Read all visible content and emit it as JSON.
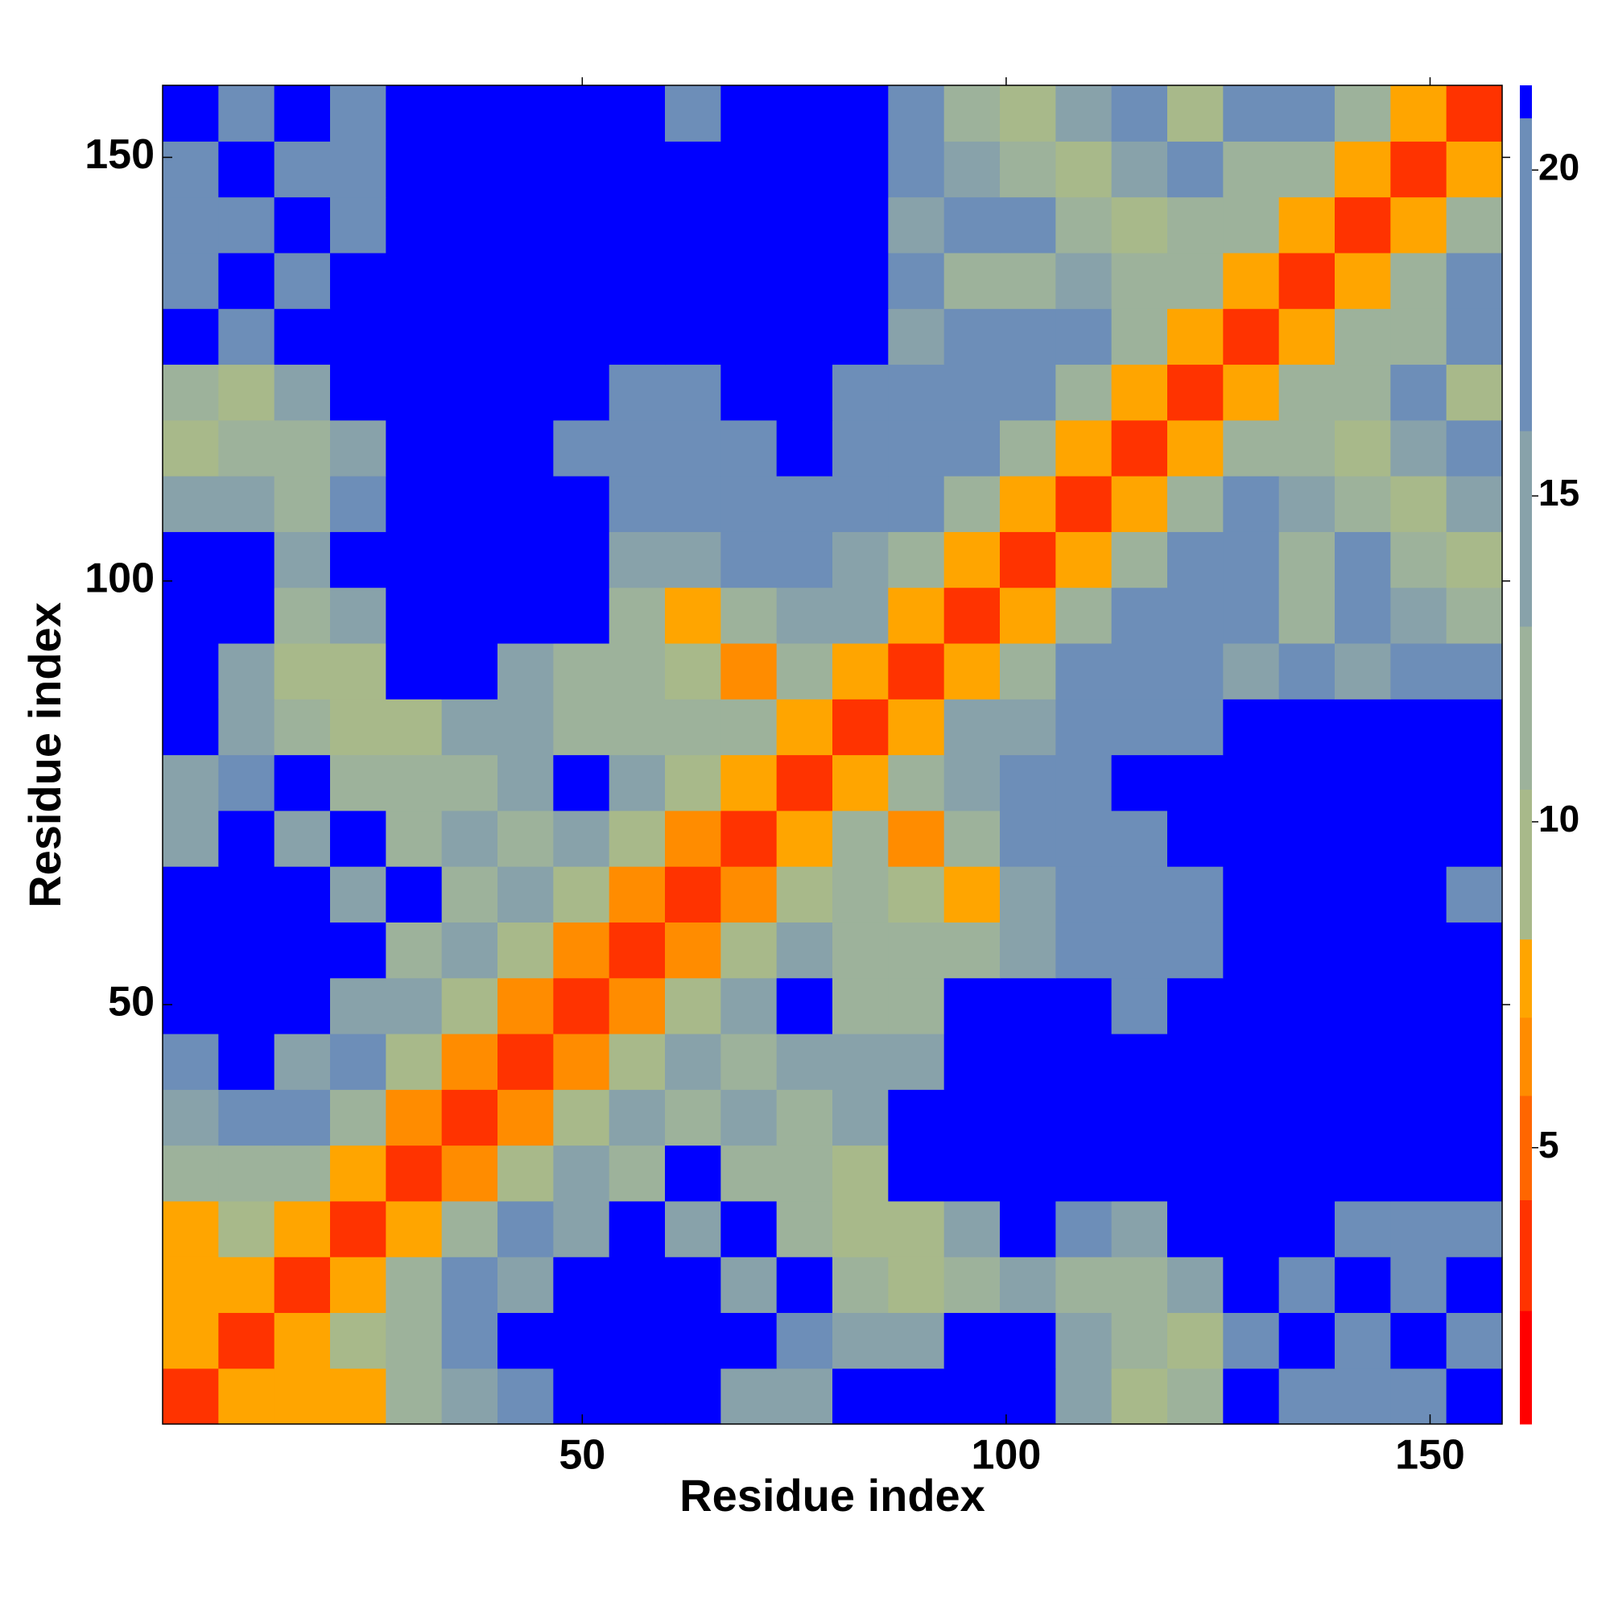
{
  "chart_data": {
    "type": "heatmap",
    "x_label": "Residue index",
    "y_label": "Residue index",
    "xlim": [
      0.5,
      158.5
    ],
    "ylim": [
      0.5,
      158.5
    ],
    "xticks": [
      50,
      100,
      150
    ],
    "yticks": [
      50,
      100,
      150
    ],
    "z": [
      [
        3.8,
        8,
        8,
        8,
        11,
        14,
        19,
        21,
        21,
        21,
        15,
        14,
        21,
        21,
        21,
        21,
        14,
        9,
        13,
        21,
        19,
        19,
        18,
        21
      ],
      [
        8,
        3.8,
        8,
        9,
        12,
        17,
        21,
        21,
        21,
        21,
        21,
        17,
        16,
        14,
        21,
        21,
        16,
        12,
        10,
        17,
        21,
        17,
        21,
        18
      ],
      [
        8,
        8,
        3.8,
        8,
        13,
        17,
        16,
        21,
        21,
        21,
        14,
        21,
        12,
        9,
        13,
        16,
        13,
        12,
        15,
        21,
        18,
        21,
        18,
        21
      ],
      [
        8,
        9,
        8,
        3.8,
        8,
        13,
        17,
        15,
        21,
        14,
        21,
        13,
        9,
        10,
        16,
        21,
        17,
        16,
        21,
        21,
        21,
        18,
        18,
        19
      ],
      [
        11,
        12,
        13,
        8,
        3.8,
        7,
        10,
        14,
        13,
        21,
        13,
        12,
        10,
        21,
        21,
        21,
        21,
        21,
        21,
        21,
        21,
        21,
        21,
        21
      ],
      [
        14,
        17,
        17,
        13,
        7,
        3.8,
        7,
        10,
        14,
        13,
        14,
        12,
        15,
        21,
        21,
        21,
        21,
        21,
        21,
        21,
        21,
        21,
        21,
        21
      ],
      [
        19,
        21,
        16,
        17,
        10,
        7,
        3.8,
        7,
        10,
        14,
        13,
        14,
        14,
        15,
        21,
        21,
        21,
        21,
        21,
        21,
        21,
        21,
        21,
        21
      ],
      [
        21,
        21,
        21,
        15,
        14,
        10,
        7,
        3.8,
        7,
        10,
        14,
        21,
        13,
        13,
        21,
        21,
        21,
        18,
        21,
        21,
        21,
        21,
        21,
        21
      ],
      [
        21,
        21,
        21,
        21,
        13,
        14,
        10,
        7,
        3.8,
        7,
        10,
        14,
        11,
        11,
        12,
        16,
        18,
        17,
        19,
        21,
        21,
        21,
        21,
        21
      ],
      [
        21,
        21,
        21,
        14,
        21,
        13,
        14,
        10,
        7,
        3.8,
        7,
        10,
        12,
        10,
        8,
        14,
        17,
        17,
        18,
        21,
        21,
        21,
        21,
        19
      ],
      [
        15,
        21,
        14,
        21,
        13,
        14,
        13,
        14,
        10,
        7,
        3.8,
        8,
        13,
        7,
        12,
        18,
        19,
        18,
        21,
        21,
        21,
        21,
        21,
        21
      ],
      [
        14,
        17,
        21,
        13,
        12,
        12,
        14,
        21,
        14,
        10,
        8,
        3.8,
        8,
        13,
        16,
        18,
        19,
        21,
        21,
        21,
        21,
        21,
        21,
        21
      ],
      [
        21,
        16,
        12,
        9,
        10,
        15,
        14,
        13,
        11,
        12,
        13,
        8,
        3.8,
        8,
        14,
        15,
        17,
        18,
        19,
        21,
        21,
        21,
        21,
        21
      ],
      [
        21,
        14,
        9,
        10,
        21,
        21,
        15,
        13,
        11,
        10,
        7,
        13,
        8,
        3.8,
        8,
        12,
        17,
        20,
        17,
        15,
        17,
        15,
        17,
        19
      ],
      [
        21,
        21,
        13,
        16,
        21,
        21,
        21,
        21,
        12,
        8,
        12,
        16,
        14,
        8,
        3.8,
        8,
        13,
        17,
        19,
        18,
        13,
        17,
        16,
        13
      ],
      [
        21,
        21,
        16,
        21,
        21,
        21,
        21,
        21,
        16,
        14,
        18,
        18,
        15,
        12,
        8,
        3.8,
        8,
        13,
        17,
        19,
        12,
        17,
        13,
        9
      ],
      [
        14,
        16,
        13,
        17,
        21,
        21,
        21,
        21,
        18,
        17,
        19,
        19,
        17,
        17,
        13,
        8,
        3.8,
        8,
        12,
        17,
        15,
        13,
        10,
        14
      ],
      [
        9,
        12,
        12,
        16,
        21,
        21,
        21,
        18,
        17,
        17,
        18,
        21,
        18,
        20,
        17,
        13,
        8,
        3.8,
        8,
        13,
        13,
        10,
        14,
        19
      ],
      [
        13,
        10,
        15,
        21,
        21,
        21,
        21,
        21,
        19,
        18,
        21,
        21,
        19,
        17,
        19,
        17,
        12,
        8,
        3.8,
        8,
        12,
        13,
        17,
        9
      ],
      [
        21,
        17,
        21,
        21,
        21,
        21,
        21,
        21,
        21,
        21,
        21,
        21,
        21,
        15,
        18,
        19,
        17,
        13,
        8,
        3.8,
        8,
        13,
        11,
        17
      ],
      [
        19,
        21,
        18,
        21,
        21,
        21,
        21,
        21,
        21,
        21,
        21,
        21,
        21,
        17,
        13,
        12,
        15,
        13,
        12,
        8,
        3.8,
        8,
        13,
        18
      ],
      [
        19,
        17,
        21,
        18,
        21,
        21,
        21,
        21,
        21,
        21,
        21,
        21,
        21,
        15,
        17,
        17,
        13,
        10,
        13,
        13,
        8,
        3.8,
        8,
        13
      ],
      [
        18,
        21,
        18,
        18,
        21,
        21,
        21,
        21,
        21,
        21,
        21,
        21,
        21,
        17,
        16,
        13,
        10,
        14,
        17,
        11,
        13,
        8,
        3.8,
        8
      ],
      [
        21,
        18,
        21,
        19,
        21,
        21,
        21,
        21,
        21,
        19,
        21,
        21,
        21,
        19,
        13,
        9,
        14,
        19,
        9,
        17,
        18,
        13,
        8,
        3.8
      ]
    ],
    "colorbar": {
      "lim": [
        0.76,
        21.3
      ],
      "ticks": [
        5,
        10,
        15,
        20
      ],
      "colorscale": [
        [
          2.5,
          "#ff0000"
        ],
        [
          4.2,
          "#ff3300"
        ],
        [
          5.8,
          "#ff6600"
        ],
        [
          7,
          "#ff8c00"
        ],
        [
          8.2,
          "#ffa500"
        ],
        [
          10.5,
          "#a8b98a"
        ],
        [
          13,
          "#9db29b"
        ],
        [
          16,
          "#88a2aa"
        ],
        [
          20.8,
          "#6d8eb8"
        ],
        [
          21.3,
          "#0000ff"
        ]
      ]
    }
  }
}
